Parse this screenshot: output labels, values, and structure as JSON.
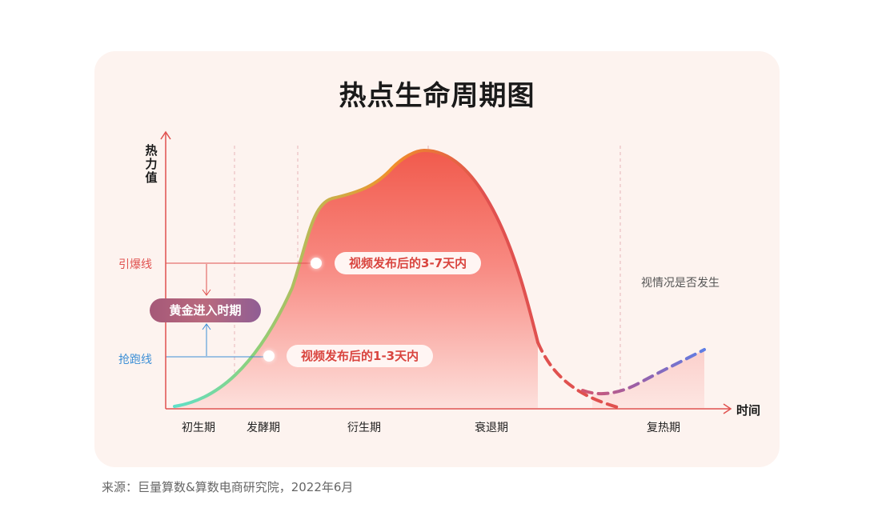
{
  "title": "热点生命周期图",
  "axes": {
    "y_label": "热力值",
    "x_label": "时间"
  },
  "thresholds": {
    "hot_line": "引爆线",
    "rush_line": "抢跑线"
  },
  "golden_period": "黄金进入时期",
  "callouts": {
    "upper": "视频发布后的3-7天内",
    "lower": "视频发布后的1-3天内"
  },
  "note": "视情况是否发生",
  "stages": [
    "初生期",
    "发酵期",
    "衍生期",
    "衰退期",
    "复热期"
  ],
  "source": "来源：巨量算数&算数电商研究院，2022年6月",
  "colors": {
    "card_bg": "#fdf3ef",
    "curve_start": "#5ee0c8",
    "curve_peak": "#f0902a",
    "curve_end": "#e0514f",
    "reheat": "#6a7fe0",
    "hot_line": "#e0514f",
    "rush_line": "#3d8fd6"
  }
}
